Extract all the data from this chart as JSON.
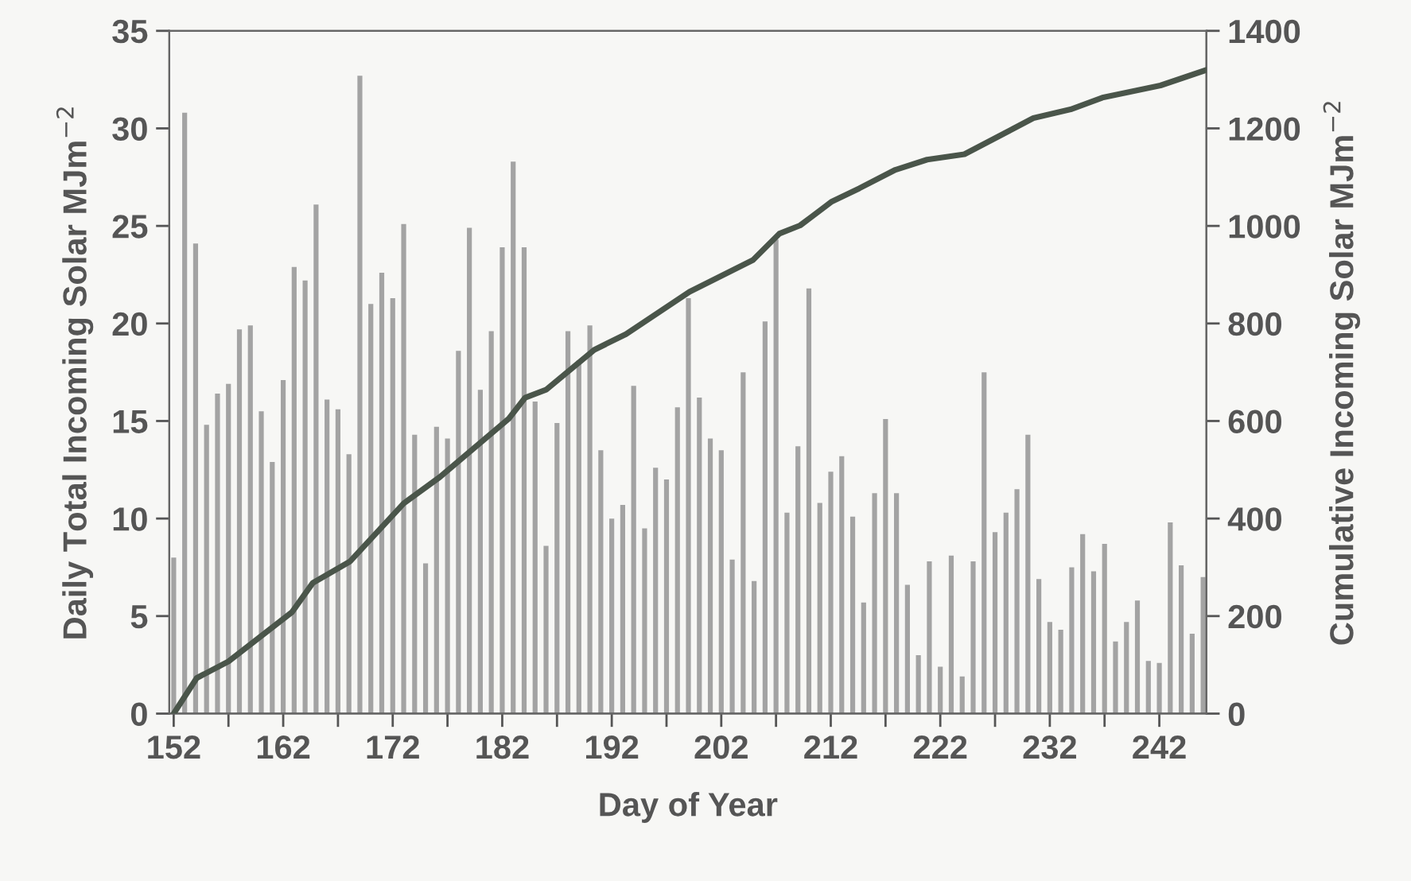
{
  "chart_data": {
    "type": "bar",
    "xlabel": "Day of Year",
    "ylabel": "Daily Total Incoming Solar MJm$^{−2}$",
    "y2label": "Cumulative Incoming Solar MJm$^{−2}$",
    "x": [
      152,
      153,
      154,
      155,
      156,
      157,
      158,
      159,
      160,
      161,
      162,
      163,
      164,
      165,
      166,
      167,
      168,
      169,
      170,
      171,
      172,
      173,
      174,
      175,
      176,
      177,
      178,
      179,
      180,
      181,
      182,
      183,
      184,
      185,
      186,
      187,
      188,
      189,
      190,
      191,
      192,
      193,
      194,
      195,
      196,
      197,
      198,
      199,
      200,
      201,
      202,
      203,
      204,
      205,
      206,
      207,
      208,
      209,
      210,
      211,
      212,
      213,
      214,
      215,
      216,
      217,
      218,
      219,
      220,
      221,
      222,
      223,
      224,
      225,
      226,
      227,
      228,
      229,
      230,
      231,
      232,
      233,
      234,
      235,
      236,
      237,
      238,
      239,
      240,
      241,
      242,
      243,
      244,
      245,
      246
    ],
    "series": [
      {
        "color": "#a3a3a3",
        "values": [
          8.0,
          30.8,
          24.1,
          14.8,
          16.4,
          16.9,
          19.7,
          19.9,
          15.5,
          12.9,
          17.1,
          22.9,
          22.2,
          26.1,
          16.1,
          15.6,
          13.3,
          32.7,
          21.0,
          22.6,
          21.3,
          25.1,
          14.3,
          7.7,
          14.7,
          14.1,
          18.6,
          24.9,
          16.6,
          19.6,
          23.9,
          28.3,
          23.9,
          16.0,
          8.6,
          14.9,
          19.6,
          18.1,
          19.9,
          13.5,
          10.0,
          10.7,
          16.8,
          9.5,
          12.6,
          12.0,
          15.7,
          21.3,
          16.2,
          14.1,
          13.5,
          7.9,
          17.5,
          6.8,
          20.1,
          24.3,
          10.3,
          13.7,
          21.8,
          10.8,
          12.4,
          13.2,
          10.1,
          5.7,
          11.3,
          15.1,
          11.3,
          6.6,
          3.0,
          7.8,
          2.4,
          8.1,
          1.9,
          7.8,
          17.5,
          9.3,
          10.3,
          11.5,
          14.3,
          6.9,
          4.7,
          4.3,
          7.5,
          9.2,
          7.3,
          8.7,
          3.7,
          4.7,
          5.8,
          2.7,
          2.6,
          9.8,
          7.6,
          4.1,
          7.0
        ]
      },
      {
        "type": "line",
        "axis": "y2",
        "color": "#4a554a",
        "x": [
          152,
          154.1,
          157,
          162.8,
          164.7,
          168.1,
          173,
          176.3,
          182.6,
          184.1,
          186,
          190.4,
          193.3,
          199.1,
          204.9,
          207.3,
          209.2,
          212.1,
          214.6,
          217.9,
          220.8,
          224.2,
          230.5,
          233.9,
          236.8,
          242.1,
          246.2
        ],
        "values": [
          0,
          73,
          107,
          208,
          268,
          312,
          431,
          485,
          605,
          648,
          664,
          746,
          778,
          865,
          930,
          984,
          1001,
          1050,
          1077,
          1115,
          1136,
          1147,
          1221,
          1239,
          1263,
          1288,
          1319
        ]
      }
    ],
    "xlim": [
      151.6,
      246.3
    ],
    "xticks": [
      152,
      {
        "value": 157,
        "label": null
      },
      162,
      {
        "value": 167,
        "label": null
      },
      172,
      {
        "value": 177,
        "label": null
      },
      182,
      {
        "value": 187,
        "label": null
      },
      192,
      {
        "value": 197,
        "label": null
      },
      202,
      {
        "value": 207,
        "label": null
      },
      212,
      {
        "value": 217,
        "label": null
      },
      222,
      {
        "value": 227,
        "label": null
      },
      232,
      {
        "value": 237,
        "label": null
      },
      242
    ],
    "ylim": [
      0,
      35
    ],
    "yticks": [
      0,
      5,
      10,
      15,
      20,
      25,
      30,
      35
    ],
    "y2lim": [
      0,
      1400
    ],
    "y2ticks": [
      0,
      200,
      400,
      600,
      800,
      1000,
      1200,
      1400
    ],
    "grid": false,
    "legend": false
  }
}
